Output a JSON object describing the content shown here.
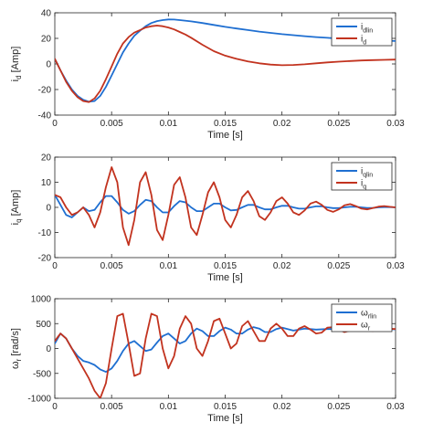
{
  "colors": {
    "linear": "#1f6fd1",
    "nonlinear": "#c2331f",
    "axis": "#262626"
  },
  "chart_data": [
    {
      "type": "line",
      "xlabel": "Time [s]",
      "ylabel": {
        "main": "i",
        "sub": "d",
        "rest": " [Amp]"
      },
      "xlim": [
        0,
        0.03
      ],
      "ylim": [
        -40,
        40
      ],
      "xticks": [
        "0",
        "0.005",
        "0.01",
        "0.015",
        "0.02",
        "0.025",
        "0.03"
      ],
      "yticks": [
        "-40",
        "-20",
        "0",
        "20",
        "40"
      ],
      "legend_position": "top-right",
      "series": [
        {
          "name": {
            "main": "i",
            "sub": "dlin"
          },
          "color": "#1f6fd1",
          "x": [
            0,
            0.0005,
            0.001,
            0.0015,
            0.002,
            0.0025,
            0.003,
            0.0035,
            0.004,
            0.0045,
            0.005,
            0.0055,
            0.006,
            0.0065,
            0.007,
            0.0075,
            0.008,
            0.0085,
            0.009,
            0.0095,
            0.01,
            0.0105,
            0.011,
            0.012,
            0.013,
            0.014,
            0.015,
            0.016,
            0.017,
            0.018,
            0.019,
            0.02,
            0.021,
            0.022,
            0.023,
            0.024,
            0.025,
            0.026,
            0.027,
            0.028,
            0.029,
            0.03
          ],
          "y": [
            4,
            -5,
            -13,
            -20,
            -25,
            -28,
            -29.5,
            -29,
            -25,
            -18,
            -9,
            0,
            9,
            16,
            22,
            26,
            29.5,
            32,
            33.5,
            34.3,
            34.8,
            34.7,
            34.3,
            33.3,
            32,
            30.5,
            29,
            27.7,
            26.5,
            25.3,
            24.3,
            23.3,
            22.5,
            21.7,
            21,
            20.4,
            19.8,
            19.3,
            18.9,
            18.5,
            18.2,
            17.9
          ]
        },
        {
          "name": {
            "main": "i",
            "sub": "d"
          },
          "color": "#c2331f",
          "x": [
            0,
            0.0005,
            0.001,
            0.0015,
            0.002,
            0.0025,
            0.003,
            0.0035,
            0.004,
            0.0045,
            0.005,
            0.0055,
            0.006,
            0.0065,
            0.007,
            0.0075,
            0.008,
            0.0085,
            0.009,
            0.0095,
            0.01,
            0.0105,
            0.011,
            0.0115,
            0.012,
            0.013,
            0.014,
            0.015,
            0.016,
            0.017,
            0.018,
            0.019,
            0.02,
            0.021,
            0.022,
            0.023,
            0.024,
            0.025,
            0.026,
            0.027,
            0.028,
            0.029,
            0.03
          ],
          "y": [
            4,
            -5,
            -14,
            -21,
            -26,
            -29,
            -29.8,
            -27,
            -21,
            -12,
            -2,
            8,
            16,
            21,
            24.5,
            26.5,
            28.5,
            29.5,
            30,
            29.5,
            28.5,
            27,
            25,
            23,
            20.5,
            15,
            10,
            6.5,
            4,
            2,
            0.5,
            -0.5,
            -1,
            -0.8,
            -0.3,
            0.5,
            1.2,
            1.8,
            2.3,
            2.7,
            3,
            3.2,
            3.4
          ]
        }
      ]
    },
    {
      "type": "line",
      "xlabel": "Time [s]",
      "ylabel": {
        "main": "i",
        "sub": "q",
        "rest": " [Amp]"
      },
      "xlim": [
        0,
        0.03
      ],
      "ylim": [
        -20,
        20
      ],
      "xticks": [
        "0",
        "0.005",
        "0.01",
        "0.015",
        "0.02",
        "0.025",
        "0.03"
      ],
      "yticks": [
        "-20",
        "-10",
        "0",
        "10",
        "20"
      ],
      "legend_position": "top-right",
      "series": [
        {
          "name": {
            "main": "i",
            "sub": "qlin"
          },
          "color": "#1f6fd1",
          "x": [
            0,
            0.0005,
            0.001,
            0.0015,
            0.002,
            0.0025,
            0.003,
            0.0035,
            0.004,
            0.0045,
            0.005,
            0.0055,
            0.006,
            0.0065,
            0.007,
            0.0075,
            0.008,
            0.0085,
            0.009,
            0.0095,
            0.01,
            0.0105,
            0.011,
            0.0115,
            0.012,
            0.0125,
            0.013,
            0.0135,
            0.014,
            0.0145,
            0.015,
            0.0155,
            0.016,
            0.0165,
            0.017,
            0.0175,
            0.018,
            0.0185,
            0.019,
            0.0195,
            0.02,
            0.0205,
            0.021,
            0.0215,
            0.022,
            0.0225,
            0.023,
            0.0235,
            0.024,
            0.0245,
            0.025,
            0.0255,
            0.026,
            0.0265,
            0.027,
            0.0275,
            0.028,
            0.0285,
            0.029,
            0.0295,
            0.03
          ],
          "y": [
            5,
            1,
            -3,
            -4,
            -2,
            0,
            -1.5,
            -1,
            2,
            4.5,
            4.5,
            2,
            -1,
            -2.5,
            -1.5,
            1,
            3,
            2.5,
            0,
            -2,
            -2,
            0.5,
            2.5,
            2,
            0,
            -1.5,
            -1.5,
            0,
            1.5,
            1.5,
            0,
            -1.2,
            -1,
            0,
            1,
            1,
            0,
            -0.8,
            -0.8,
            0,
            0.6,
            0.6,
            0,
            -0.5,
            -0.5,
            0,
            0.4,
            0.4,
            0,
            -0.3,
            -0.3,
            0,
            0.2,
            0.2,
            0,
            -0.2,
            -0.2,
            0,
            0.1,
            0.1,
            0
          ]
        },
        {
          "name": {
            "main": "i",
            "sub": "q"
          },
          "color": "#c2331f",
          "x": [
            0,
            0.0005,
            0.001,
            0.0015,
            0.002,
            0.0025,
            0.003,
            0.0035,
            0.004,
            0.0045,
            0.005,
            0.0055,
            0.006,
            0.0065,
            0.007,
            0.0075,
            0.008,
            0.0085,
            0.009,
            0.0095,
            0.01,
            0.0105,
            0.011,
            0.0115,
            0.012,
            0.0125,
            0.013,
            0.0135,
            0.014,
            0.0145,
            0.015,
            0.0155,
            0.016,
            0.0165,
            0.017,
            0.0175,
            0.018,
            0.0185,
            0.019,
            0.0195,
            0.02,
            0.0205,
            0.021,
            0.0215,
            0.022,
            0.0225,
            0.023,
            0.0235,
            0.024,
            0.0245,
            0.025,
            0.0255,
            0.026,
            0.0265,
            0.027,
            0.0275,
            0.028,
            0.0285,
            0.029,
            0.0295,
            0.03
          ],
          "y": [
            5,
            4,
            0,
            -3,
            -2,
            0,
            -3,
            -8,
            -2,
            8,
            16,
            10,
            -8,
            -15,
            -5,
            10,
            14,
            5,
            -9,
            -13,
            -3,
            9,
            12,
            4,
            -8,
            -11,
            -3,
            6,
            10,
            4,
            -5,
            -8,
            -3,
            4,
            6.5,
            2.5,
            -3.5,
            -5,
            -2,
            2.5,
            4,
            1.5,
            -2,
            -3,
            -1.2,
            1.5,
            2.3,
            1,
            -1,
            -1.8,
            -0.8,
            0.8,
            1.3,
            0.5,
            -0.5,
            -0.8,
            -0.3,
            0.3,
            0.5,
            0.2,
            0
          ]
        }
      ]
    },
    {
      "type": "line",
      "xlabel": "Time [s]",
      "ylabel": {
        "main": "ω",
        "sub": "r",
        "rest": " [rad/s]"
      },
      "xlim": [
        0,
        0.03
      ],
      "ylim": [
        -1000,
        1000
      ],
      "xticks": [
        "0",
        "0.005",
        "0.01",
        "0.015",
        "0.02",
        "0.025",
        "0.03"
      ],
      "yticks": [
        "-1000",
        "-500",
        "0",
        "500",
        "1000"
      ],
      "legend_position": "top-right",
      "series": [
        {
          "name": {
            "main": "ω",
            "sub": "rlin"
          },
          "color": "#1f6fd1",
          "x": [
            0,
            0.0005,
            0.001,
            0.0015,
            0.002,
            0.0025,
            0.003,
            0.0035,
            0.004,
            0.0045,
            0.005,
            0.0055,
            0.006,
            0.0065,
            0.007,
            0.0075,
            0.008,
            0.0085,
            0.009,
            0.0095,
            0.01,
            0.0105,
            0.011,
            0.0115,
            0.012,
            0.0125,
            0.013,
            0.0135,
            0.014,
            0.0145,
            0.015,
            0.0155,
            0.016,
            0.0165,
            0.017,
            0.0175,
            0.018,
            0.0185,
            0.019,
            0.0195,
            0.02,
            0.021,
            0.022,
            0.023,
            0.024,
            0.025,
            0.026,
            0.027,
            0.028,
            0.029,
            0.03
          ],
          "y": [
            100,
            300,
            200,
            0,
            -150,
            -250,
            -280,
            -330,
            -420,
            -470,
            -400,
            -250,
            -50,
            100,
            150,
            50,
            -50,
            -20,
            120,
            250,
            300,
            200,
            100,
            150,
            300,
            400,
            350,
            250,
            250,
            350,
            420,
            380,
            300,
            300,
            380,
            430,
            400,
            330,
            330,
            390,
            420,
            360,
            400,
            380,
            390,
            390,
            380,
            390,
            385,
            385,
            385
          ]
        },
        {
          "name": {
            "main": "ω",
            "sub": "r"
          },
          "color": "#c2331f",
          "x": [
            0,
            0.0005,
            0.001,
            0.0015,
            0.002,
            0.0025,
            0.003,
            0.0035,
            0.004,
            0.0045,
            0.005,
            0.0055,
            0.006,
            0.0065,
            0.007,
            0.0075,
            0.008,
            0.0085,
            0.009,
            0.0095,
            0.01,
            0.0105,
            0.011,
            0.0115,
            0.012,
            0.0125,
            0.013,
            0.0135,
            0.014,
            0.0145,
            0.015,
            0.0155,
            0.016,
            0.0165,
            0.017,
            0.0175,
            0.018,
            0.0185,
            0.019,
            0.0195,
            0.02,
            0.0205,
            0.021,
            0.0215,
            0.022,
            0.0225,
            0.023,
            0.0235,
            0.024,
            0.0245,
            0.025,
            0.0255,
            0.026,
            0.0265,
            0.027,
            0.0275,
            0.028,
            0.0285,
            0.029,
            0.03
          ],
          "y": [
            150,
            300,
            200,
            0,
            -200,
            -400,
            -600,
            -850,
            -1000,
            -700,
            0,
            650,
            700,
            100,
            -550,
            -500,
            200,
            700,
            650,
            0,
            -400,
            -150,
            400,
            650,
            500,
            0,
            -150,
            150,
            550,
            600,
            300,
            0,
            100,
            450,
            550,
            350,
            150,
            150,
            400,
            500,
            400,
            250,
            250,
            400,
            450,
            380,
            300,
            320,
            420,
            430,
            380,
            330,
            360,
            410,
            410,
            370,
            350,
            380,
            400,
            390
          ]
        }
      ]
    }
  ]
}
